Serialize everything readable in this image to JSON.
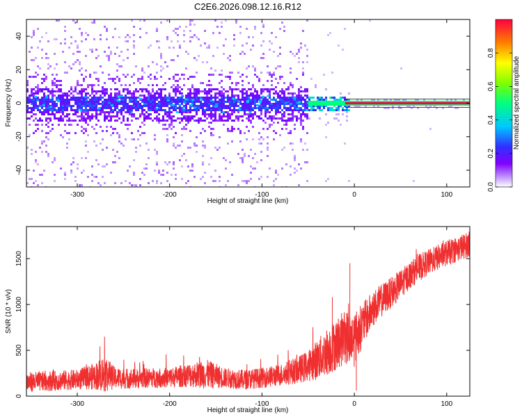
{
  "title": "C2E6.2026.098.12.16.R12",
  "chart_data": [
    {
      "type": "heatmap",
      "name": "spectrogram",
      "xlabel": "Height of straight line (km)",
      "ylabel": "Frequency (Hz)",
      "xlim": [
        -355,
        125
      ],
      "ylim": [
        -50,
        50
      ],
      "xticks": [
        -300,
        -200,
        -100,
        0,
        100
      ],
      "yticks": [
        -40,
        -20,
        0,
        20,
        40
      ],
      "description_regions": [
        {
          "x_range": [
            -355,
            -50
          ],
          "freq_band": [
            -10,
            10
          ],
          "level": 0.3,
          "note": "dense broadband noise"
        },
        {
          "x_range": [
            -55,
            125
          ],
          "freq_band": [
            -1,
            1
          ],
          "level": 0.95,
          "note": "narrow carrier line"
        }
      ],
      "colorbar": {
        "label": "Normalized spectral amplitude",
        "range": [
          0.0,
          1.0
        ],
        "ticks": [
          0.0,
          0.2,
          0.4,
          0.6,
          0.8
        ],
        "tick_labels": [
          "0.0",
          "0.2",
          "0.4",
          "0.6",
          "0.8"
        ],
        "colors": [
          "#ffffff",
          "#c9a6ff",
          "#8000ff",
          "#3030ff",
          "#00c8ff",
          "#00ff80",
          "#80ff00",
          "#ffff00",
          "#ff8000",
          "#ff0040"
        ]
      }
    },
    {
      "type": "line",
      "name": "snr",
      "xlabel": "Height of straight line (km)",
      "ylabel": "SNR (10 * v/v)",
      "xlim": [
        -355,
        125
      ],
      "ylim": [
        0,
        1850
      ],
      "xticks": [
        -300,
        -200,
        -100,
        0,
        100
      ],
      "yticks": [
        0,
        500,
        1000,
        1500
      ],
      "color": "#f03030",
      "series": [
        {
          "name": "SNR",
          "x": [
            -355,
            -340,
            -320,
            -300,
            -280,
            -270,
            -260,
            -240,
            -220,
            -200,
            -180,
            -160,
            -140,
            -120,
            -100,
            -80,
            -60,
            -50,
            -40,
            -30,
            -20,
            -10,
            0,
            10,
            20,
            30,
            40,
            50,
            60,
            70,
            80,
            90,
            100,
            110,
            120,
            125
          ],
          "values": [
            150,
            160,
            170,
            180,
            220,
            250,
            200,
            190,
            200,
            200,
            230,
            240,
            200,
            180,
            200,
            230,
            290,
            330,
            400,
            480,
            560,
            650,
            620,
            800,
            950,
            1050,
            1130,
            1220,
            1320,
            1400,
            1460,
            1510,
            1560,
            1600,
            1640,
            1660
          ],
          "spread": [
            110,
            110,
            110,
            110,
            150,
            210,
            120,
            110,
            110,
            110,
            130,
            160,
            110,
            110,
            110,
            120,
            150,
            170,
            220,
            260,
            280,
            300,
            300,
            230,
            200,
            180,
            170,
            160,
            150,
            150,
            140,
            140,
            140,
            140,
            140,
            140
          ]
        }
      ]
    }
  ]
}
